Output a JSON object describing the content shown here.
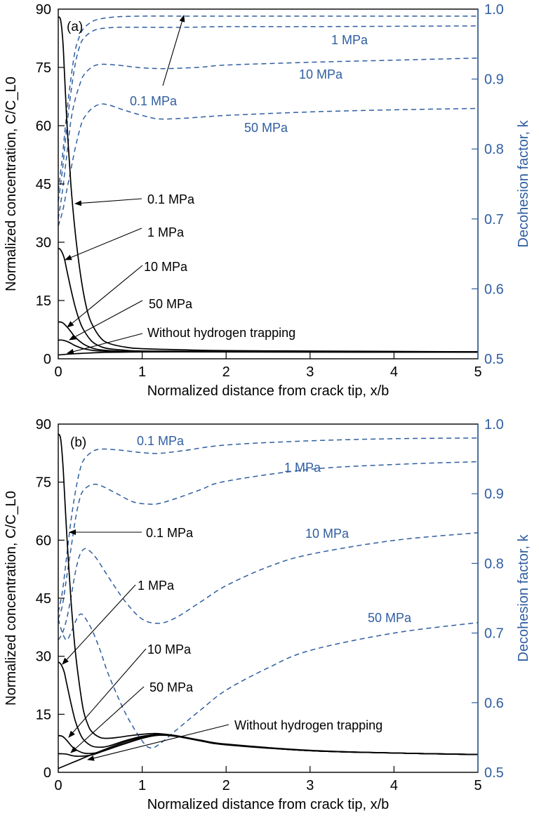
{
  "colors": {
    "primary": "#000000",
    "secondary": "#2f5ea0"
  },
  "chart_data": [
    {
      "type": "line",
      "panel_label": "(a)",
      "xlabel": "Normalized distance from crack tip, x/b",
      "ylabel": "Normalized concentration, C/C_L0",
      "y2label": "Decohesion factor, k",
      "xlim": [
        0,
        5
      ],
      "ylim": [
        0,
        90
      ],
      "y2lim": [
        0.5,
        1.0
      ],
      "xticks": [
        "0",
        "1",
        "2",
        "3",
        "4",
        "5"
      ],
      "yticks": [
        "0",
        "15",
        "30",
        "45",
        "60",
        "75",
        "90"
      ],
      "y2ticks": [
        "0.5",
        "0.6",
        "0.7",
        "0.8",
        "0.9",
        "1.0"
      ],
      "grid": false,
      "series": [
        {
          "name": "0.1 MPa",
          "axis": "left",
          "style": "solid",
          "x": [
            0,
            0.03,
            0.06,
            0.1,
            0.15,
            0.2,
            0.25,
            0.3,
            0.35,
            0.4,
            0.5,
            0.6,
            0.8,
            1.0,
            1.5,
            2,
            3,
            4,
            5
          ],
          "y": [
            88,
            87,
            80,
            62,
            45,
            33,
            24,
            17,
            12,
            9,
            5.5,
            4,
            3,
            2.6,
            2.3,
            2.1,
            2,
            1.9,
            1.8
          ]
        },
        {
          "name": "1 MPa",
          "axis": "left",
          "style": "solid",
          "x": [
            0,
            0.03,
            0.07,
            0.1,
            0.15,
            0.2,
            0.25,
            0.3,
            0.4,
            0.5,
            0.6,
            0.8,
            1.0,
            2,
            3,
            5
          ],
          "y": [
            28.5,
            28,
            26,
            23,
            18,
            13.5,
            10,
            7.5,
            4.5,
            3.2,
            2.6,
            2.2,
            2.0,
            1.9,
            1.8,
            1.8
          ]
        },
        {
          "name": "10 MPa",
          "axis": "left",
          "style": "solid",
          "x": [
            0,
            0.05,
            0.1,
            0.15,
            0.2,
            0.3,
            0.4,
            0.5,
            0.7,
            1.0,
            2,
            5
          ],
          "y": [
            9.5,
            9.3,
            8.3,
            7,
            5.6,
            3.8,
            2.8,
            2.3,
            2.0,
            1.9,
            1.8,
            1.7
          ]
        },
        {
          "name": "50 MPa",
          "axis": "left",
          "style": "solid",
          "x": [
            0,
            0.05,
            0.1,
            0.15,
            0.2,
            0.3,
            0.4,
            0.5,
            0.7,
            1.0,
            2,
            5
          ],
          "y": [
            4.8,
            4.8,
            4.5,
            4.0,
            3.4,
            2.6,
            2.2,
            2.0,
            1.9,
            1.8,
            1.75,
            1.7
          ]
        },
        {
          "name": "Without hydrogen trapping",
          "axis": "left",
          "style": "solid",
          "x": [
            0,
            0.2,
            0.5,
            1.0,
            2,
            3,
            5
          ],
          "y": [
            1.0,
            1.3,
            1.6,
            1.75,
            1.8,
            1.8,
            1.8
          ]
        },
        {
          "name": "0.1 MPa",
          "axis": "right",
          "style": "dashed",
          "x": [
            0,
            0.05,
            0.1,
            0.15,
            0.2,
            0.25,
            0.3,
            0.4,
            0.5,
            0.7,
            1.0,
            1.5,
            2,
            3,
            5
          ],
          "y": [
            0.74,
            0.79,
            0.85,
            0.9,
            0.94,
            0.96,
            0.972,
            0.982,
            0.986,
            0.989,
            0.99,
            0.99,
            0.99,
            0.99,
            0.99
          ]
        },
        {
          "name": "1 MPa",
          "axis": "right",
          "style": "dashed",
          "x": [
            0,
            0.05,
            0.1,
            0.15,
            0.2,
            0.25,
            0.3,
            0.4,
            0.5,
            0.7,
            1.0,
            1.5,
            2,
            3,
            5
          ],
          "y": [
            0.725,
            0.77,
            0.83,
            0.88,
            0.92,
            0.945,
            0.958,
            0.968,
            0.972,
            0.974,
            0.974,
            0.974,
            0.975,
            0.975,
            0.976
          ]
        },
        {
          "name": "10 MPa",
          "axis": "right",
          "style": "dashed",
          "x": [
            0,
            0.05,
            0.1,
            0.15,
            0.2,
            0.25,
            0.3,
            0.4,
            0.5,
            0.7,
            1.0,
            1.3,
            1.7,
            2,
            3,
            4,
            5
          ],
          "y": [
            0.7,
            0.74,
            0.79,
            0.84,
            0.87,
            0.89,
            0.905,
            0.917,
            0.921,
            0.92,
            0.916,
            0.915,
            0.917,
            0.92,
            0.924,
            0.927,
            0.93
          ]
        },
        {
          "name": "50 MPa",
          "axis": "right",
          "style": "dashed",
          "x": [
            0,
            0.05,
            0.1,
            0.15,
            0.2,
            0.25,
            0.3,
            0.4,
            0.5,
            0.6,
            0.8,
            1.0,
            1.2,
            1.5,
            2,
            3,
            4,
            5
          ],
          "y": [
            0.69,
            0.71,
            0.74,
            0.77,
            0.8,
            0.825,
            0.843,
            0.858,
            0.864,
            0.863,
            0.855,
            0.848,
            0.843,
            0.844,
            0.848,
            0.853,
            0.856,
            0.858
          ]
        }
      ],
      "annotations": [
        {
          "text": "(a)",
          "color": "black"
        },
        {
          "text": "0.1 MPa",
          "color": "blue",
          "series": "k 0.1 MPa"
        },
        {
          "text": "1 MPa",
          "color": "blue"
        },
        {
          "text": "10 MPa",
          "color": "blue"
        },
        {
          "text": "50 MPa",
          "color": "blue"
        },
        {
          "text": "0.1 MPa",
          "color": "black"
        },
        {
          "text": "1 MPa",
          "color": "black"
        },
        {
          "text": "10 MPa",
          "color": "black"
        },
        {
          "text": "50 MPa",
          "color": "black"
        },
        {
          "text": "Without hydrogen trapping",
          "color": "black"
        }
      ]
    },
    {
      "type": "line",
      "panel_label": "(b)",
      "xlabel": "Normalized distance from crack tip, x/b",
      "ylabel": "Normalized concentration, C/C_L0",
      "y2label": "Decohesion factor, k",
      "xlim": [
        0,
        5
      ],
      "ylim": [
        0,
        90
      ],
      "y2lim": [
        0.5,
        1.0
      ],
      "xticks": [
        "0",
        "1",
        "2",
        "3",
        "4",
        "5"
      ],
      "yticks": [
        "0",
        "15",
        "30",
        "45",
        "60",
        "75",
        "90"
      ],
      "y2ticks": [
        "0.5",
        "0.6",
        "0.7",
        "0.8",
        "0.9",
        "1.0"
      ],
      "grid": false,
      "series": [
        {
          "name": "0.1 MPa",
          "axis": "left",
          "style": "solid",
          "x": [
            0,
            0.03,
            0.06,
            0.1,
            0.15,
            0.2,
            0.25,
            0.3,
            0.35,
            0.4,
            0.5,
            0.6,
            0.7,
            0.9,
            1.1,
            1.2,
            1.4,
            1.7,
            2,
            3,
            4,
            5
          ],
          "y": [
            87.5,
            86,
            78,
            62,
            45,
            32,
            23,
            16,
            12.5,
            10.5,
            9,
            8.8,
            9,
            9.6,
            10,
            10,
            9.5,
            8.3,
            7.3,
            5.7,
            5.0,
            4.6
          ]
        },
        {
          "name": "1 MPa",
          "axis": "left",
          "style": "solid",
          "x": [
            0,
            0.03,
            0.07,
            0.1,
            0.15,
            0.2,
            0.25,
            0.3,
            0.4,
            0.5,
            0.6,
            0.8,
            1.0,
            1.2,
            1.4,
            1.7,
            2,
            3,
            4,
            5
          ],
          "y": [
            28.5,
            28,
            26,
            23,
            18,
            13.5,
            10.5,
            8.5,
            6.8,
            6.5,
            6.8,
            8.2,
            9.3,
            9.8,
            9.4,
            8.2,
            7.2,
            5.6,
            5.0,
            4.6
          ]
        },
        {
          "name": "10 MPa",
          "axis": "left",
          "style": "solid",
          "x": [
            0,
            0.05,
            0.1,
            0.15,
            0.2,
            0.3,
            0.4,
            0.5,
            0.7,
            1.0,
            1.2,
            1.4,
            1.7,
            2,
            3,
            4,
            5
          ],
          "y": [
            9.5,
            9.3,
            8.3,
            7,
            6,
            5,
            4.9,
            5.3,
            6.8,
            8.9,
            9.7,
            9.4,
            8.2,
            7.2,
            5.6,
            5.0,
            4.6
          ]
        },
        {
          "name": "50 MPa",
          "axis": "left",
          "style": "solid",
          "x": [
            0,
            0.05,
            0.1,
            0.15,
            0.2,
            0.3,
            0.4,
            0.5,
            0.7,
            1.0,
            1.2,
            1.4,
            1.7,
            2,
            3,
            4,
            5
          ],
          "y": [
            4.8,
            4.8,
            4.7,
            4.4,
            4.2,
            4.2,
            4.5,
            5.2,
            6.7,
            8.8,
            9.6,
            9.4,
            8.2,
            7.2,
            5.6,
            5.0,
            4.6
          ]
        },
        {
          "name": "Without hydrogen trapping",
          "axis": "left",
          "style": "solid",
          "x": [
            0,
            0.2,
            0.4,
            0.6,
            0.8,
            1.0,
            1.2,
            1.4,
            1.7,
            2,
            3,
            4,
            5
          ],
          "y": [
            1.0,
            2.8,
            4.6,
            6.3,
            7.9,
            9.1,
            9.6,
            9.3,
            8.1,
            7.1,
            5.6,
            5.0,
            4.6
          ]
        },
        {
          "name": "0.1 MPa",
          "axis": "right",
          "style": "dashed",
          "x": [
            0,
            0.05,
            0.1,
            0.15,
            0.2,
            0.25,
            0.3,
            0.4,
            0.5,
            0.7,
            1.0,
            1.2,
            1.5,
            2,
            3,
            4,
            5
          ],
          "y": [
            0.73,
            0.76,
            0.81,
            0.86,
            0.9,
            0.93,
            0.948,
            0.96,
            0.964,
            0.963,
            0.959,
            0.958,
            0.962,
            0.97,
            0.976,
            0.979,
            0.98
          ]
        },
        {
          "name": "1 MPa",
          "axis": "right",
          "style": "dashed",
          "x": [
            0,
            0.05,
            0.1,
            0.15,
            0.2,
            0.25,
            0.3,
            0.4,
            0.5,
            0.7,
            0.9,
            1.1,
            1.2,
            1.4,
            1.7,
            2,
            3,
            4,
            5
          ],
          "y": [
            0.72,
            0.74,
            0.78,
            0.82,
            0.86,
            0.89,
            0.905,
            0.913,
            0.912,
            0.9,
            0.888,
            0.885,
            0.886,
            0.893,
            0.906,
            0.918,
            0.935,
            0.942,
            0.946
          ]
        },
        {
          "name": "10 MPa",
          "axis": "right",
          "style": "dashed",
          "x": [
            0,
            0.05,
            0.1,
            0.15,
            0.2,
            0.25,
            0.3,
            0.35,
            0.45,
            0.6,
            0.8,
            1.0,
            1.2,
            1.4,
            1.7,
            2,
            2.5,
            3,
            4,
            5
          ],
          "y": [
            0.69,
            0.7,
            0.72,
            0.75,
            0.785,
            0.81,
            0.82,
            0.82,
            0.808,
            0.78,
            0.745,
            0.72,
            0.714,
            0.722,
            0.745,
            0.768,
            0.795,
            0.813,
            0.833,
            0.844
          ]
        },
        {
          "name": "50 MPa",
          "axis": "right",
          "style": "dashed",
          "x": [
            0,
            0.05,
            0.1,
            0.15,
            0.2,
            0.25,
            0.3,
            0.4,
            0.5,
            0.6,
            0.8,
            1.0,
            1.1,
            1.2,
            1.4,
            1.7,
            2,
            2.5,
            3,
            4,
            5
          ],
          "y": [
            0.72,
            0.7,
            0.69,
            0.7,
            0.715,
            0.726,
            0.725,
            0.705,
            0.675,
            0.64,
            0.585,
            0.545,
            0.535,
            0.54,
            0.56,
            0.59,
            0.618,
            0.65,
            0.675,
            0.7,
            0.715
          ]
        }
      ],
      "annotations": [
        {
          "text": "(b)",
          "color": "black"
        },
        {
          "text": "0.1 MPa",
          "color": "blue"
        },
        {
          "text": "1 MPa",
          "color": "blue"
        },
        {
          "text": "10 MPa",
          "color": "blue"
        },
        {
          "text": "50 MPa",
          "color": "blue"
        },
        {
          "text": "0.1 MPa",
          "color": "black"
        },
        {
          "text": "1 MPa",
          "color": "black"
        },
        {
          "text": "10 MPa",
          "color": "black"
        },
        {
          "text": "50 MPa",
          "color": "black"
        },
        {
          "text": "Without hydrogen trapping",
          "color": "black"
        }
      ]
    }
  ]
}
